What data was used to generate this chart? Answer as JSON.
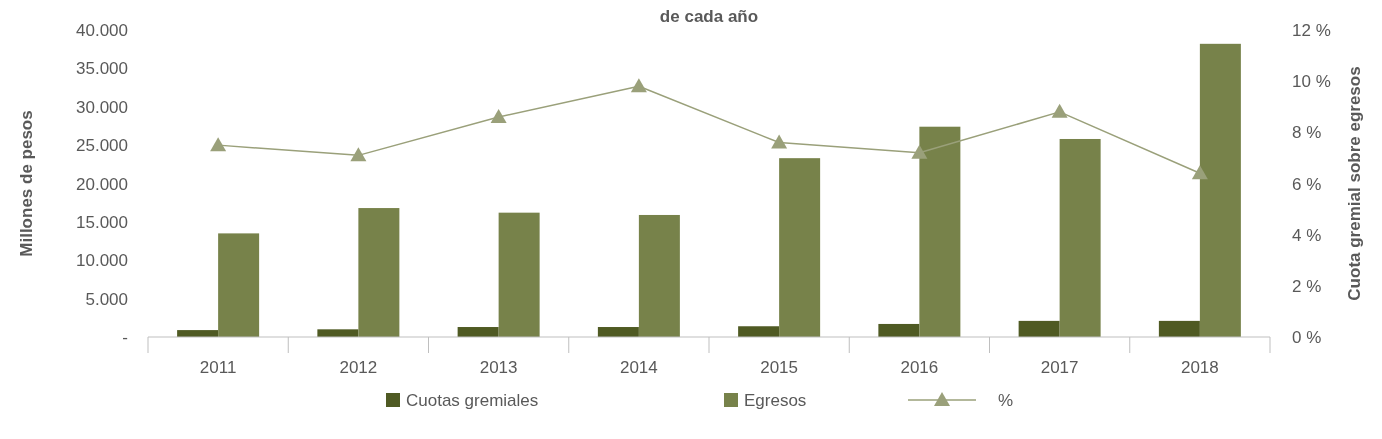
{
  "chart_data": {
    "type": "bar",
    "title": "de cada año",
    "ylabel": "Millones de pesos",
    "y2label": "Cuota gremial sobre egresos",
    "categories": [
      "2011",
      "2012",
      "2013",
      "2014",
      "2015",
      "2016",
      "2017",
      "2018"
    ],
    "series": [
      {
        "name": "Cuotas gremiales",
        "color": "#4f5a23",
        "values": [
          900,
          1000,
          1300,
          1300,
          1400,
          1700,
          2100,
          2100
        ]
      },
      {
        "name": "Egresos",
        "color": "#77824a",
        "values": [
          13500,
          16800,
          16200,
          15900,
          23300,
          27400,
          25800,
          38200
        ]
      },
      {
        "name": "%",
        "type": "line",
        "axis": "y2",
        "color": "#9aa07a",
        "marker": "triangle",
        "values": [
          7.5,
          7.1,
          8.6,
          9.8,
          7.6,
          7.2,
          8.8,
          6.4
        ]
      }
    ],
    "ylim": [
      0,
      40000
    ],
    "yticks": [
      {
        "value": 0,
        "label": "-"
      },
      {
        "value": 5000,
        "label": "5.000"
      },
      {
        "value": 10000,
        "label": "10.000"
      },
      {
        "value": 15000,
        "label": "15.000"
      },
      {
        "value": 20000,
        "label": "20.000"
      },
      {
        "value": 25000,
        "label": "25.000"
      },
      {
        "value": 30000,
        "label": "30.000"
      },
      {
        "value": 35000,
        "label": "35.000"
      },
      {
        "value": 40000,
        "label": "40.000"
      }
    ],
    "y2lim": [
      0,
      12
    ],
    "y2ticks": [
      {
        "value": 0,
        "label": "0 %"
      },
      {
        "value": 2,
        "label": "2 %"
      },
      {
        "value": 4,
        "label": "4 %"
      },
      {
        "value": 6,
        "label": "6 %"
      },
      {
        "value": 8,
        "label": "8 %"
      },
      {
        "value": 10,
        "label": "10 %"
      },
      {
        "value": 12,
        "label": "12 %"
      }
    ],
    "legend": "bottom"
  }
}
